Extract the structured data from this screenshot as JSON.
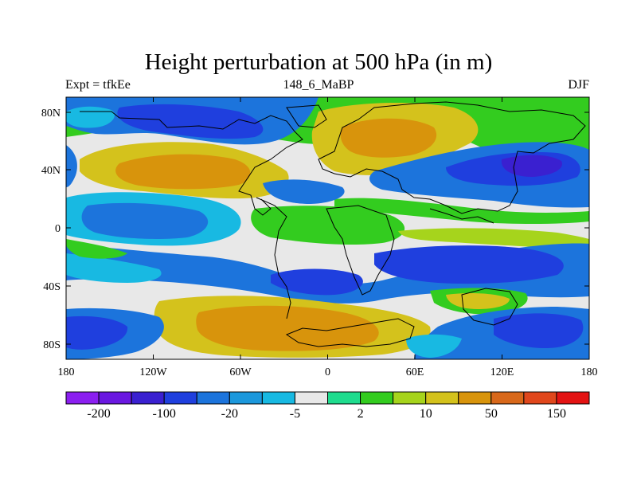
{
  "title": "Height perturbation at 500 hPa (in m)",
  "subtitle_left": "Expt = tfkEe",
  "subtitle_center": "148_6_MaBP",
  "subtitle_right": "DJF",
  "lat_ticks": [
    "80N",
    "40N",
    "0",
    "40S",
    "80S"
  ],
  "lon_ticks": [
    "180",
    "120W",
    "60W",
    "0",
    "60E",
    "120E",
    "180"
  ],
  "colorbar": {
    "colors": [
      "#8b1ff0",
      "#6a18e0",
      "#3a20d0",
      "#1f3fde",
      "#1c74dc",
      "#1c98dc",
      "#18b9e2",
      "#e8e8e8",
      "#1fdc8e",
      "#33cc1f",
      "#a6d41c",
      "#d4c21c",
      "#d8940c",
      "#d8681a",
      "#e0471c",
      "#e31313"
    ],
    "labels": [
      "-200",
      "-100",
      "-20",
      "-5",
      "2",
      "10",
      "50",
      "150"
    ]
  },
  "field_colors": {
    "blue_dark": "#1f3fde",
    "blue_mid": "#1c74dc",
    "blue_light": "#18b9e2",
    "neutral": "#e8e8e8",
    "green": "#33cc1f",
    "yellow": "#d4c21c",
    "orange": "#d8940c",
    "purple": "#3a20d0"
  }
}
